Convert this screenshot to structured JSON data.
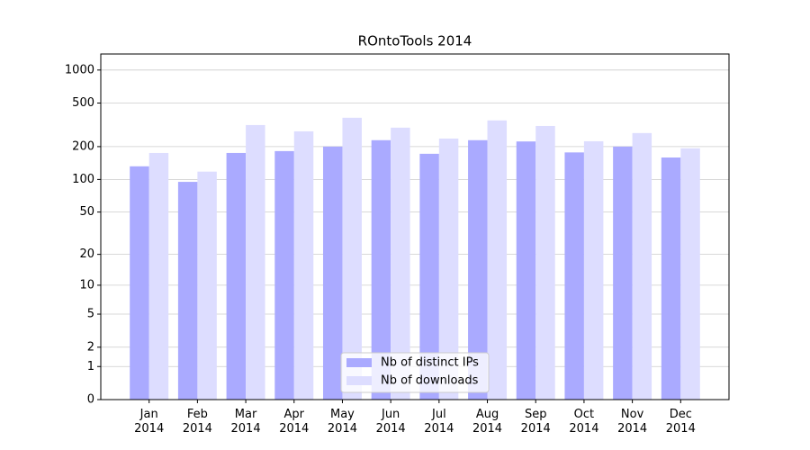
{
  "chart_data": {
    "type": "bar",
    "title": "ROntoTools 2014",
    "categories": [
      "Jan\n2014",
      "Feb\n2014",
      "Mar\n2014",
      "Apr\n2014",
      "May\n2014",
      "Jun\n2014",
      "Jul\n2014",
      "Aug\n2014",
      "Sep\n2014",
      "Oct\n2014",
      "Nov\n2014",
      "Dec\n2014"
    ],
    "series": [
      {
        "name": "Nb of distinct IPs",
        "color": "#aaaaff",
        "values": [
          132,
          95,
          175,
          182,
          200,
          229,
          172,
          229,
          223,
          177,
          200,
          159
        ]
      },
      {
        "name": "Nb of downloads",
        "color": "#ddddff",
        "values": [
          175,
          118,
          315,
          276,
          367,
          298,
          237,
          347,
          309,
          224,
          266,
          193
        ]
      }
    ],
    "y_scale": "log1p",
    "ylim": [
      0,
      1400
    ],
    "yticks": [
      0,
      1,
      2,
      5,
      10,
      20,
      50,
      100,
      200,
      500,
      1000
    ],
    "grid": true,
    "legend": "lower center"
  }
}
